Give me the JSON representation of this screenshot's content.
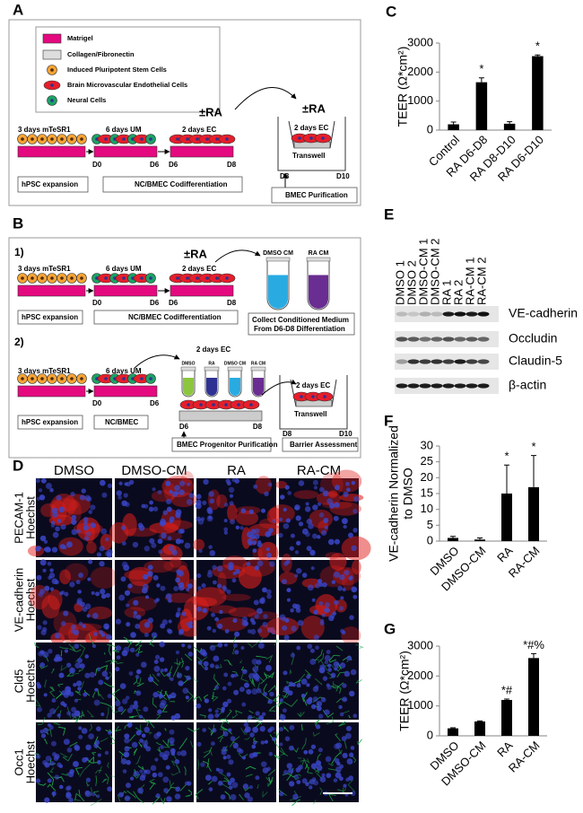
{
  "panel_labels": [
    "A",
    "B",
    "C",
    "D",
    "E",
    "F",
    "G"
  ],
  "panel_a": {
    "legend": [
      "Matrigel",
      "Collagen/Fibronectin",
      "Induced Pluripotent Stem Cells",
      "Brain Microvascular Endothelial Cells",
      "Neural Cells"
    ],
    "stages": [
      "3 days mTeSR1",
      "6 days UM",
      "2 days EC",
      "2 days EC"
    ],
    "treatment": [
      "±RA",
      "±RA"
    ],
    "days": [
      "D0",
      "D6",
      "D6",
      "D8",
      "D8",
      "D10"
    ],
    "transwell": "Transwell",
    "steps": [
      "hPSC expansion",
      "NC/BMEC Codifferentiation",
      "BMEC Purification"
    ]
  },
  "panel_b": {
    "part1": {
      "label": "1)",
      "stages": [
        "3 days mTeSR1",
        "6 days UM",
        "2 days EC"
      ],
      "treatment": "±RA",
      "media": [
        "DMSO CM",
        "RA CM"
      ],
      "days": [
        "D0",
        "D6",
        "D6",
        "D8"
      ],
      "steps": [
        "hPSC expansion",
        "NC/BMEC Codifferentiation"
      ],
      "collect": [
        "Collect Conditioned Medium",
        "From D6-D8 Differentiation"
      ]
    },
    "part2": {
      "label": "2)",
      "stages": [
        "3 days mTeSR1",
        "6 days UM",
        "2 days EC",
        "2 days EC"
      ],
      "media": [
        "DMSO",
        "RA",
        "DMSO CM",
        "RA CM"
      ],
      "days": [
        "D0",
        "D6",
        "D6",
        "D8",
        "D8",
        "D10"
      ],
      "transwell": "Transwell",
      "steps": [
        "hPSC expansion",
        "NC/BMEC",
        "BMEC Progenitor Purification",
        "Barrier Assessment"
      ]
    }
  },
  "panel_d": {
    "columns": [
      "DMSO",
      "DMSO-CM",
      "RA",
      "RA-CM"
    ],
    "rows": [
      {
        "marker": "PECAM-1",
        "color": "#e0201b",
        "counterstain": "Hoechst"
      },
      {
        "marker": "VE-cadherin",
        "color": "#e0201b",
        "counterstain": "Hoechst"
      },
      {
        "marker": "Cld5",
        "color": "#1fa84a",
        "counterstain": "Hoechst"
      },
      {
        "marker": "Occ1",
        "color": "#1fa84a",
        "counterstain": "Hoechst"
      }
    ],
    "counterstain_color": "#2e3192"
  },
  "panel_e": {
    "lanes": [
      "DMSO 1",
      "DMSO 2",
      "DMSO-CM 1",
      "DMSO-CM 2",
      "RA 1",
      "RA 2",
      "RA-CM 1",
      "RA-CM 2"
    ],
    "bands": [
      "VE-cadherin",
      "Occludin",
      "Claudin-5",
      "β-actin"
    ]
  },
  "chart_data": [
    {
      "type": "bar",
      "ylabel": [
        "TEER (Ω*cm²)"
      ],
      "categories": [
        "Control",
        "RA D6-D8",
        "RA D8-D10",
        "RA D6-D10"
      ],
      "values": [
        200,
        1650,
        220,
        2550
      ],
      "errors": [
        80,
        150,
        70,
        40
      ],
      "annotations": [
        null,
        "*",
        null,
        "*"
      ],
      "color": "#000000",
      "ylim": [
        0,
        3000
      ],
      "yticks": [
        0,
        1000,
        2000,
        3000
      ]
    },
    {
      "type": "bar",
      "ylabel": [
        "VE-cadherin Normalized",
        "to DMSO"
      ],
      "categories": [
        "DMSO",
        "DMSO-CM",
        "RA",
        "RA-CM"
      ],
      "values": [
        1,
        0.5,
        15,
        17
      ],
      "errors": [
        0.5,
        0.5,
        9,
        10
      ],
      "annotations": [
        null,
        null,
        "*",
        "*"
      ],
      "color": "#000000",
      "ylim": [
        0,
        30
      ],
      "yticks": [
        0,
        5,
        10,
        15,
        20,
        25,
        30
      ]
    },
    {
      "type": "bar",
      "ylabel": [
        "TEER (Ω*cm²)"
      ],
      "categories": [
        "DMSO",
        "DMSO-CM",
        "RA",
        "RA-CM"
      ],
      "values": [
        250,
        480,
        1200,
        2600
      ],
      "errors": [
        20,
        20,
        30,
        150
      ],
      "annotations": [
        null,
        null,
        "*#",
        "*#%"
      ],
      "color": "#000000",
      "ylim": [
        0,
        3000
      ],
      "yticks": [
        0,
        1000,
        2000,
        3000
      ]
    }
  ]
}
